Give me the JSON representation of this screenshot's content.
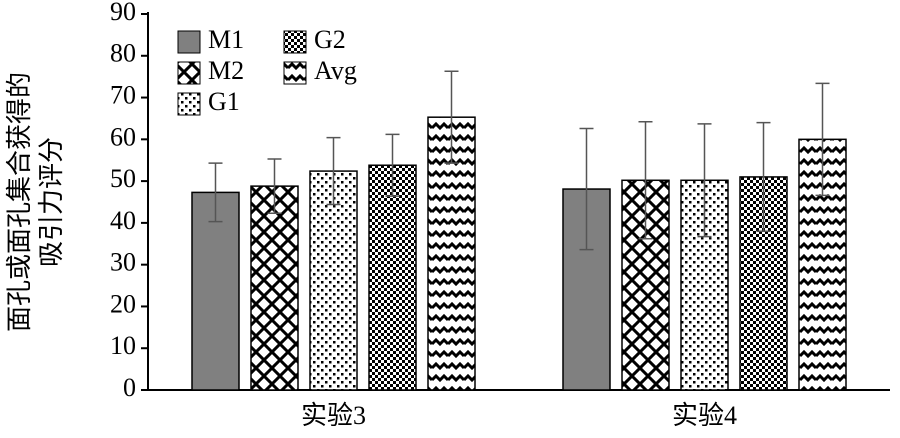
{
  "chart_data": {
    "type": "bar",
    "ylabel": [
      "面孔或面孔集合获得的",
      "吸引力评分"
    ],
    "categories": [
      "实验3",
      "实验4"
    ],
    "series": [
      {
        "name": "M1",
        "color": "#808080",
        "pattern": "solid",
        "values": [
          47.3,
          48.1
        ],
        "error": [
          7,
          14.5
        ]
      },
      {
        "name": "M2",
        "color": "#000000",
        "pattern": "diamond",
        "values": [
          48.8,
          50.2
        ],
        "error": [
          6.5,
          14
        ]
      },
      {
        "name": "G1",
        "color": "#000000",
        "pattern": "dots",
        "values": [
          52.4,
          50.2
        ],
        "error": [
          8,
          13.5
        ]
      },
      {
        "name": "G2",
        "color": "#000000",
        "pattern": "checker",
        "values": [
          53.8,
          51
        ],
        "error": [
          7.4,
          13
        ]
      },
      {
        "name": "Avg",
        "color": "#000000",
        "pattern": "zigzag",
        "values": [
          65.3,
          60
        ],
        "error": [
          11,
          13.4
        ]
      }
    ],
    "ylim": [
      0,
      90
    ],
    "yticks": [
      0,
      10,
      20,
      30,
      40,
      50,
      60,
      70,
      80,
      90
    ],
    "grid": false,
    "legend": "upper left"
  }
}
